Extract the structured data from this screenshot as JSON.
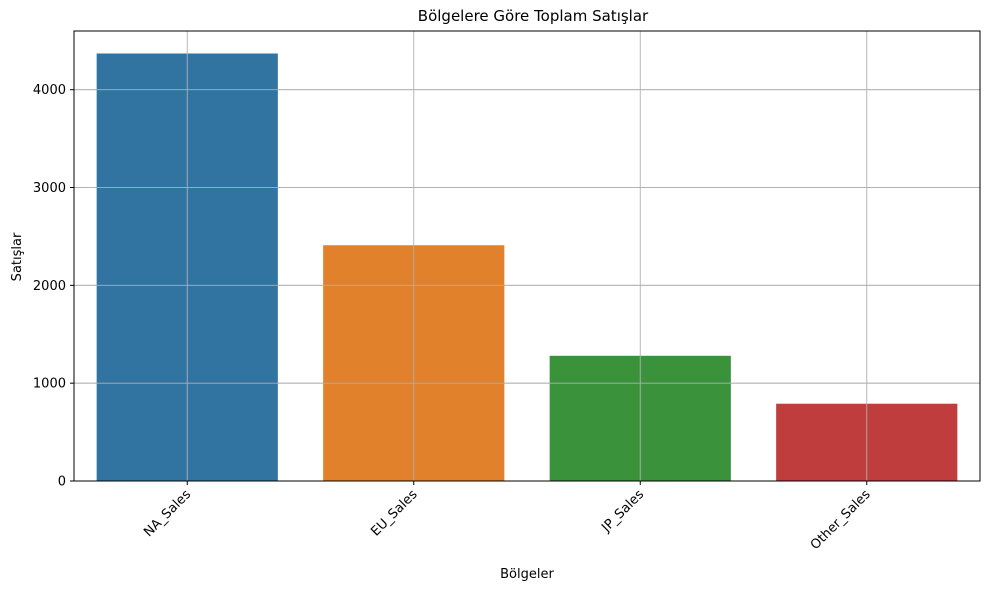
{
  "chart_data": {
    "type": "bar",
    "title": "Bölgelere Göre Toplam Satışlar",
    "xlabel": "Bölgeler",
    "ylabel": "Satışlar",
    "categories": [
      "NA_Sales",
      "EU_Sales",
      "JP_Sales",
      "Other_Sales"
    ],
    "values": [
      4370,
      2410,
      1280,
      790
    ],
    "colors": [
      "#3274a1",
      "#e1812c",
      "#3a923a",
      "#c03d3e"
    ],
    "ylim": [
      0,
      4600
    ],
    "yticks": [
      0,
      1000,
      2000,
      3000,
      4000
    ],
    "grid": true,
    "x_tick_rotation_deg": 45
  }
}
